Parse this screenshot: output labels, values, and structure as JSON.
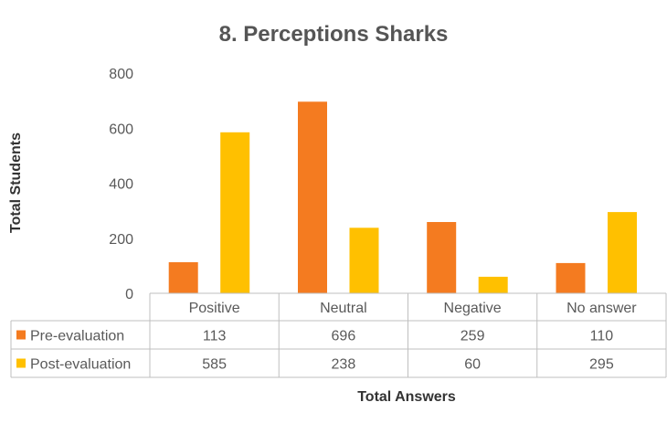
{
  "chart_data": {
    "type": "bar",
    "title": "8. Perceptions Sharks",
    "xlabel": "Total Answers",
    "ylabel": "Total Students",
    "categories": [
      "Positive",
      "Neutral",
      "Negative",
      "No answer"
    ],
    "series": [
      {
        "name": "Pre-evaluation",
        "values": [
          113,
          696,
          259,
          110
        ],
        "color": "#F47B20"
      },
      {
        "name": "Post-evaluation",
        "values": [
          585,
          238,
          60,
          295
        ],
        "color": "#FFC000"
      }
    ],
    "ylim": [
      0,
      800
    ],
    "yticks": [
      0,
      200,
      400,
      600,
      800
    ],
    "grid": false,
    "legend": "data table below x-axis",
    "data_table": true
  }
}
